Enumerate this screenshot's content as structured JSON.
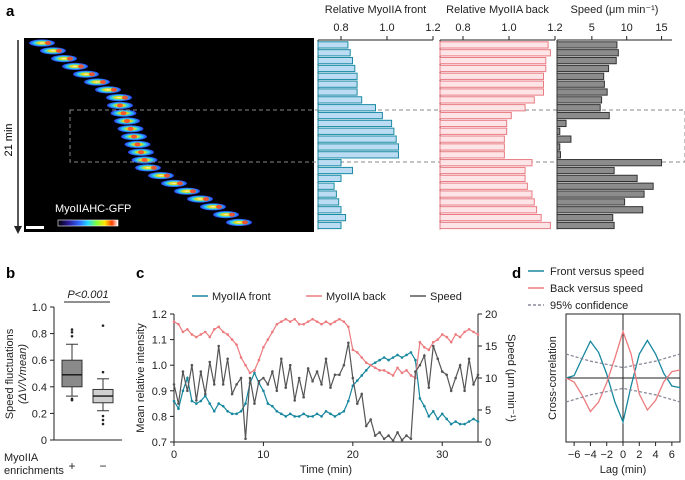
{
  "panels": {
    "a": "a",
    "b": "b",
    "c": "c",
    "d": "d"
  },
  "colors": {
    "front_fill": "#bcdcf3",
    "front_stroke": "#1b8ba6",
    "back_fill": "#fde4e6",
    "back_stroke": "#e87c84",
    "speed_fill": "#8c8c8c",
    "speed_stroke": "#333333",
    "c_front": "#17879e",
    "c_back": "#ec7b7f",
    "c_speed": "#555555"
  },
  "image_panel": {
    "label": "MyoIIAHC-GFP",
    "time_label": "21 min"
  },
  "chart_data": [
    {
      "id": "a-front",
      "type": "bar",
      "orientation": "horizontal",
      "title": "Relative MyoIIA front",
      "xlim": [
        0.7,
        1.2
      ],
      "xticks": [
        "0.8",
        "1.0",
        "1.2"
      ],
      "xtick_values": [
        0.8,
        1.0,
        1.2
      ],
      "values": [
        0.83,
        0.84,
        0.85,
        0.86,
        0.87,
        0.87,
        0.87,
        0.89,
        0.95,
        0.98,
        1.02,
        1.03,
        1.04,
        1.05,
        1.05,
        0.8,
        0.85,
        0.8,
        0.77,
        0.78,
        0.79,
        0.8,
        0.82,
        0.8
      ]
    },
    {
      "id": "a-back",
      "type": "bar",
      "orientation": "horizontal",
      "title": "Relative MyoIIA back",
      "xlim": [
        0.7,
        1.2
      ],
      "xticks": [
        "0.8",
        "1.0",
        "1.2"
      ],
      "xtick_values": [
        0.8,
        1.0,
        1.2
      ],
      "values": [
        1.17,
        1.18,
        1.16,
        1.16,
        1.15,
        1.15,
        1.15,
        1.11,
        1.07,
        1.01,
        0.99,
        0.99,
        0.98,
        0.98,
        0.98,
        1.1,
        1.07,
        1.07,
        1.08,
        1.1,
        1.11,
        1.12,
        1.14,
        1.18
      ]
    },
    {
      "id": "a-speed",
      "type": "bar",
      "orientation": "horizontal",
      "title": "Speed (μm min⁻¹)",
      "xlim": [
        0,
        16.5
      ],
      "xticks": [
        "5",
        "10",
        "15"
      ],
      "xtick_values": [
        5,
        10,
        15
      ],
      "values": [
        8.6,
        8.8,
        8.5,
        7.4,
        6.7,
        6.8,
        7.2,
        6.4,
        6.2,
        7.5,
        1.3,
        0.4,
        2.0,
        0.4,
        0.5,
        15.0,
        8.2,
        11.5,
        13.8,
        12.5,
        9.7,
        12.3,
        8.0,
        8.2
      ]
    },
    {
      "id": "b",
      "type": "box",
      "ylabel_line1": "Speed fluctuations",
      "ylabel_line2": "(ΔV/Vmean)",
      "ylim": [
        0,
        1.0
      ],
      "yticks": [
        "0",
        "0.2",
        "0.4",
        "0.6",
        "0.8",
        "1.0"
      ],
      "ytick_values": [
        0,
        0.2,
        0.4,
        0.6,
        0.8,
        1.0
      ],
      "significance": "P<0.001",
      "xlabel_line1": "MyoIIA",
      "xlabel_line2": "enrichments",
      "groups": [
        {
          "label": "+",
          "q1": 0.4,
          "median": 0.49,
          "q3": 0.6,
          "whisker_low": 0.33,
          "whisker_high": 0.72,
          "outliers": [
            0.83,
            0.81,
            0.78,
            0.3,
            0.31
          ]
        },
        {
          "label": "−",
          "q1": 0.28,
          "median": 0.33,
          "q3": 0.38,
          "whisker_low": 0.22,
          "whisker_high": 0.46,
          "outliers": [
            0.51,
            0.86,
            0.18,
            0.15,
            0.12
          ]
        }
      ]
    },
    {
      "id": "c",
      "type": "line",
      "xlabel": "Time (min)",
      "ylabel_left": "Mean relative intensity",
      "ylabel_right": "Speed (μm min⁻¹)",
      "xlim": [
        0,
        34
      ],
      "ylim_left": [
        0.7,
        1.2
      ],
      "ylim_right": [
        0,
        20
      ],
      "xticks": [
        "0",
        "10",
        "20",
        "30"
      ],
      "xtick_values": [
        0,
        10,
        20,
        30
      ],
      "yticks_left": [
        "0.7",
        "0.8",
        "0.9",
        "1.0",
        "1.1",
        "1.2"
      ],
      "ytick_values_left": [
        0.7,
        0.8,
        0.9,
        1.0,
        1.1,
        1.2
      ],
      "yticks_right": [
        "0",
        "5",
        "10",
        "15",
        "20"
      ],
      "ytick_values_right": [
        0,
        5,
        10,
        15,
        20
      ],
      "legend": [
        "MyoIIA front",
        "MyoIIA back",
        "Speed"
      ],
      "x": [
        0,
        0.5,
        1,
        1.5,
        2,
        2.5,
        3,
        3.5,
        4,
        4.5,
        5,
        5.5,
        6,
        6.5,
        7,
        7.5,
        8,
        8.5,
        9,
        9.5,
        10,
        10.5,
        11,
        11.5,
        12,
        12.5,
        13,
        13.5,
        14,
        14.5,
        15,
        15.5,
        16,
        16.5,
        17,
        17.5,
        18,
        18.5,
        19,
        19.5,
        20,
        20.5,
        21,
        21.5,
        22,
        22.5,
        23,
        23.5,
        24,
        24.5,
        25,
        25.5,
        26,
        26.5,
        27,
        27.5,
        28,
        28.5,
        29,
        29.5,
        30,
        30.5,
        31,
        31.5,
        32,
        32.5,
        33,
        33.5,
        34
      ],
      "series": [
        {
          "name": "MyoIIA front",
          "axis": "left",
          "values": [
            0.86,
            0.83,
            0.9,
            0.95,
            0.86,
            0.85,
            0.86,
            0.88,
            0.85,
            0.82,
            0.85,
            0.84,
            0.82,
            0.81,
            0.81,
            0.82,
            0.85,
            0.93,
            0.97,
            0.93,
            0.9,
            0.85,
            0.84,
            0.82,
            0.81,
            0.8,
            0.81,
            0.8,
            0.8,
            0.81,
            0.8,
            0.8,
            0.81,
            0.8,
            0.82,
            0.81,
            0.8,
            0.81,
            0.82,
            0.86,
            0.92,
            0.94,
            0.96,
            0.98,
            1.0,
            1.01,
            1.02,
            1.03,
            1.02,
            1.03,
            1.04,
            1.03,
            1.04,
            1.05,
            1.02,
            0.87,
            0.84,
            0.8,
            0.82,
            0.79,
            0.81,
            0.79,
            0.77,
            0.78,
            0.77,
            0.77,
            0.78,
            0.79,
            0.78
          ]
        },
        {
          "name": "MyoIIA back",
          "axis": "left",
          "values": [
            1.17,
            1.16,
            1.13,
            1.14,
            1.12,
            1.11,
            1.12,
            1.13,
            1.11,
            1.14,
            1.15,
            1.13,
            1.12,
            1.1,
            1.08,
            1.03,
            1.0,
            0.97,
            0.98,
            1.02,
            1.07,
            1.1,
            1.13,
            1.16,
            1.17,
            1.18,
            1.17,
            1.18,
            1.16,
            1.16,
            1.17,
            1.18,
            1.17,
            1.16,
            1.17,
            1.16,
            1.17,
            1.18,
            1.17,
            1.15,
            1.06,
            1.05,
            1.03,
            1.01,
            1.0,
            0.99,
            0.98,
            0.98,
            0.97,
            0.96,
            0.99,
            0.97,
            0.98,
            0.96,
            0.95,
            1.09,
            1.07,
            1.06,
            1.09,
            1.1,
            1.12,
            1.11,
            1.09,
            1.12,
            1.11,
            1.13,
            1.14,
            1.13,
            1.12
          ]
        },
        {
          "name": "Speed",
          "axis": "right",
          "values": [
            9.0,
            6.0,
            11.0,
            8.0,
            12.0,
            6.5,
            11.0,
            7.5,
            12.5,
            9.0,
            15.0,
            9.0,
            13.0,
            7.5,
            9.0,
            10.0,
            0.5,
            10.0,
            6.0,
            9.5,
            10.0,
            9.0,
            11.0,
            8.0,
            13.0,
            8.5,
            12.0,
            6.5,
            10.0,
            7.0,
            11.5,
            9.5,
            11.0,
            9.0,
            13.0,
            8.5,
            10.5,
            10.5,
            12.0,
            15.5,
            10.0,
            6.0,
            7.5,
            2.5,
            3.5,
            1.0,
            1.5,
            0.5,
            1.0,
            0.2,
            1.5,
            0.3,
            1.0,
            0.5,
            11.0,
            12.0,
            13.5,
            8.5,
            15.0,
            13.0,
            11.0,
            10.5,
            8.0,
            10.0,
            12.0,
            8.0,
            13.0,
            9.0,
            10.5
          ]
        }
      ]
    },
    {
      "id": "d",
      "type": "line",
      "xlabel": "Lag (min)",
      "ylabel": "Cross-correlation",
      "xlim": [
        -7,
        7
      ],
      "ylim": [
        -0.8,
        0.8
      ],
      "xticks": [
        "−6",
        "−4",
        "−2",
        "0",
        "2",
        "4",
        "6"
      ],
      "xtick_values": [
        -6,
        -4,
        -2,
        0,
        2,
        4,
        6
      ],
      "legend": [
        "Front versus speed",
        "Back versus speed",
        "95% confidence"
      ],
      "x": [
        -7,
        -6,
        -5,
        -4,
        -3,
        -2,
        -1,
        0,
        1,
        2,
        3,
        4,
        5,
        6,
        7
      ],
      "series": [
        {
          "name": "Front versus speed",
          "values": [
            0.0,
            0.03,
            0.25,
            0.46,
            0.32,
            0.05,
            -0.3,
            -0.55,
            -0.1,
            0.3,
            0.47,
            0.3,
            0.06,
            -0.1,
            -0.12
          ]
        },
        {
          "name": "Back versus speed",
          "values": [
            0.0,
            -0.05,
            -0.22,
            -0.42,
            -0.3,
            -0.06,
            0.25,
            0.58,
            0.3,
            -0.2,
            -0.4,
            -0.28,
            -0.05,
            0.08,
            0.1
          ]
        },
        {
          "name": "95% confidence",
          "values": [
            0.3,
            0.27,
            0.24,
            0.21,
            0.19,
            0.17,
            0.15,
            0.13,
            0.15,
            0.17,
            0.19,
            0.21,
            0.24,
            0.27,
            0.3
          ]
        },
        {
          "name": "95% confidence (lower)",
          "values": [
            -0.3,
            -0.27,
            -0.24,
            -0.21,
            -0.19,
            -0.17,
            -0.15,
            -0.13,
            -0.15,
            -0.17,
            -0.19,
            -0.21,
            -0.24,
            -0.27,
            -0.3
          ]
        }
      ]
    }
  ]
}
